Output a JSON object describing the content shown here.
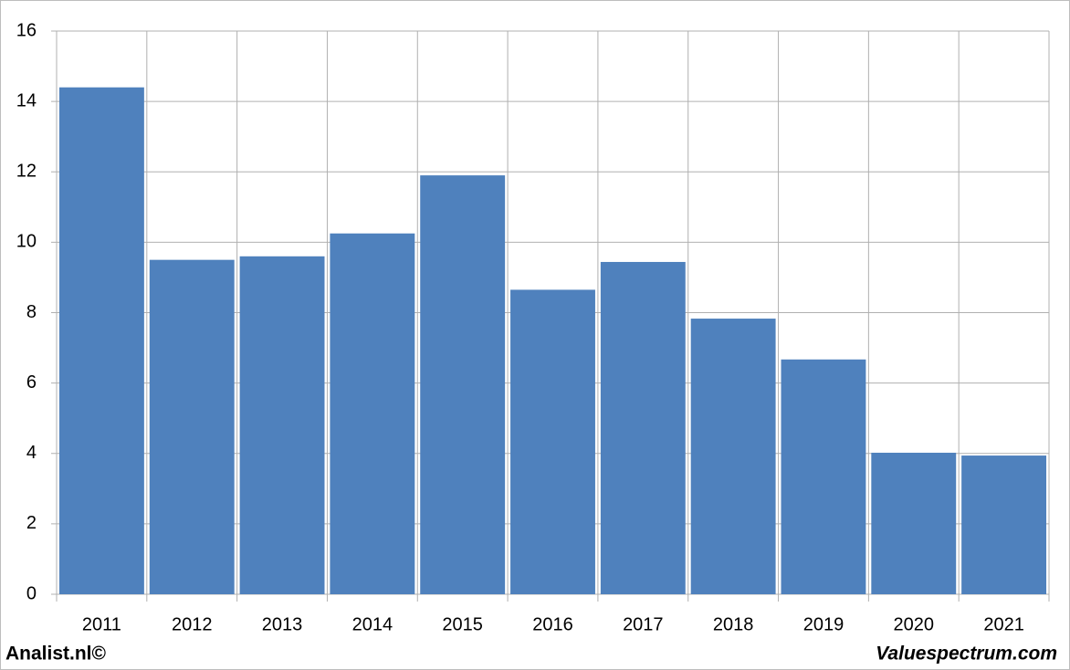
{
  "chart_data": {
    "type": "bar",
    "categories": [
      "2011",
      "2012",
      "2013",
      "2014",
      "2015",
      "2016",
      "2017",
      "2018",
      "2019",
      "2020",
      "2021"
    ],
    "values": [
      14.4,
      9.5,
      9.6,
      10.25,
      11.9,
      8.65,
      9.44,
      7.83,
      6.67,
      4.02,
      3.94
    ],
    "color": "#4f81bd",
    "ylim": [
      0,
      16
    ],
    "yticks": [
      0,
      2,
      4,
      6,
      8,
      10,
      12,
      14,
      16
    ],
    "grid": true,
    "footer_left": "Analist.nl©",
    "footer_right": "Valuespectrum.com"
  }
}
